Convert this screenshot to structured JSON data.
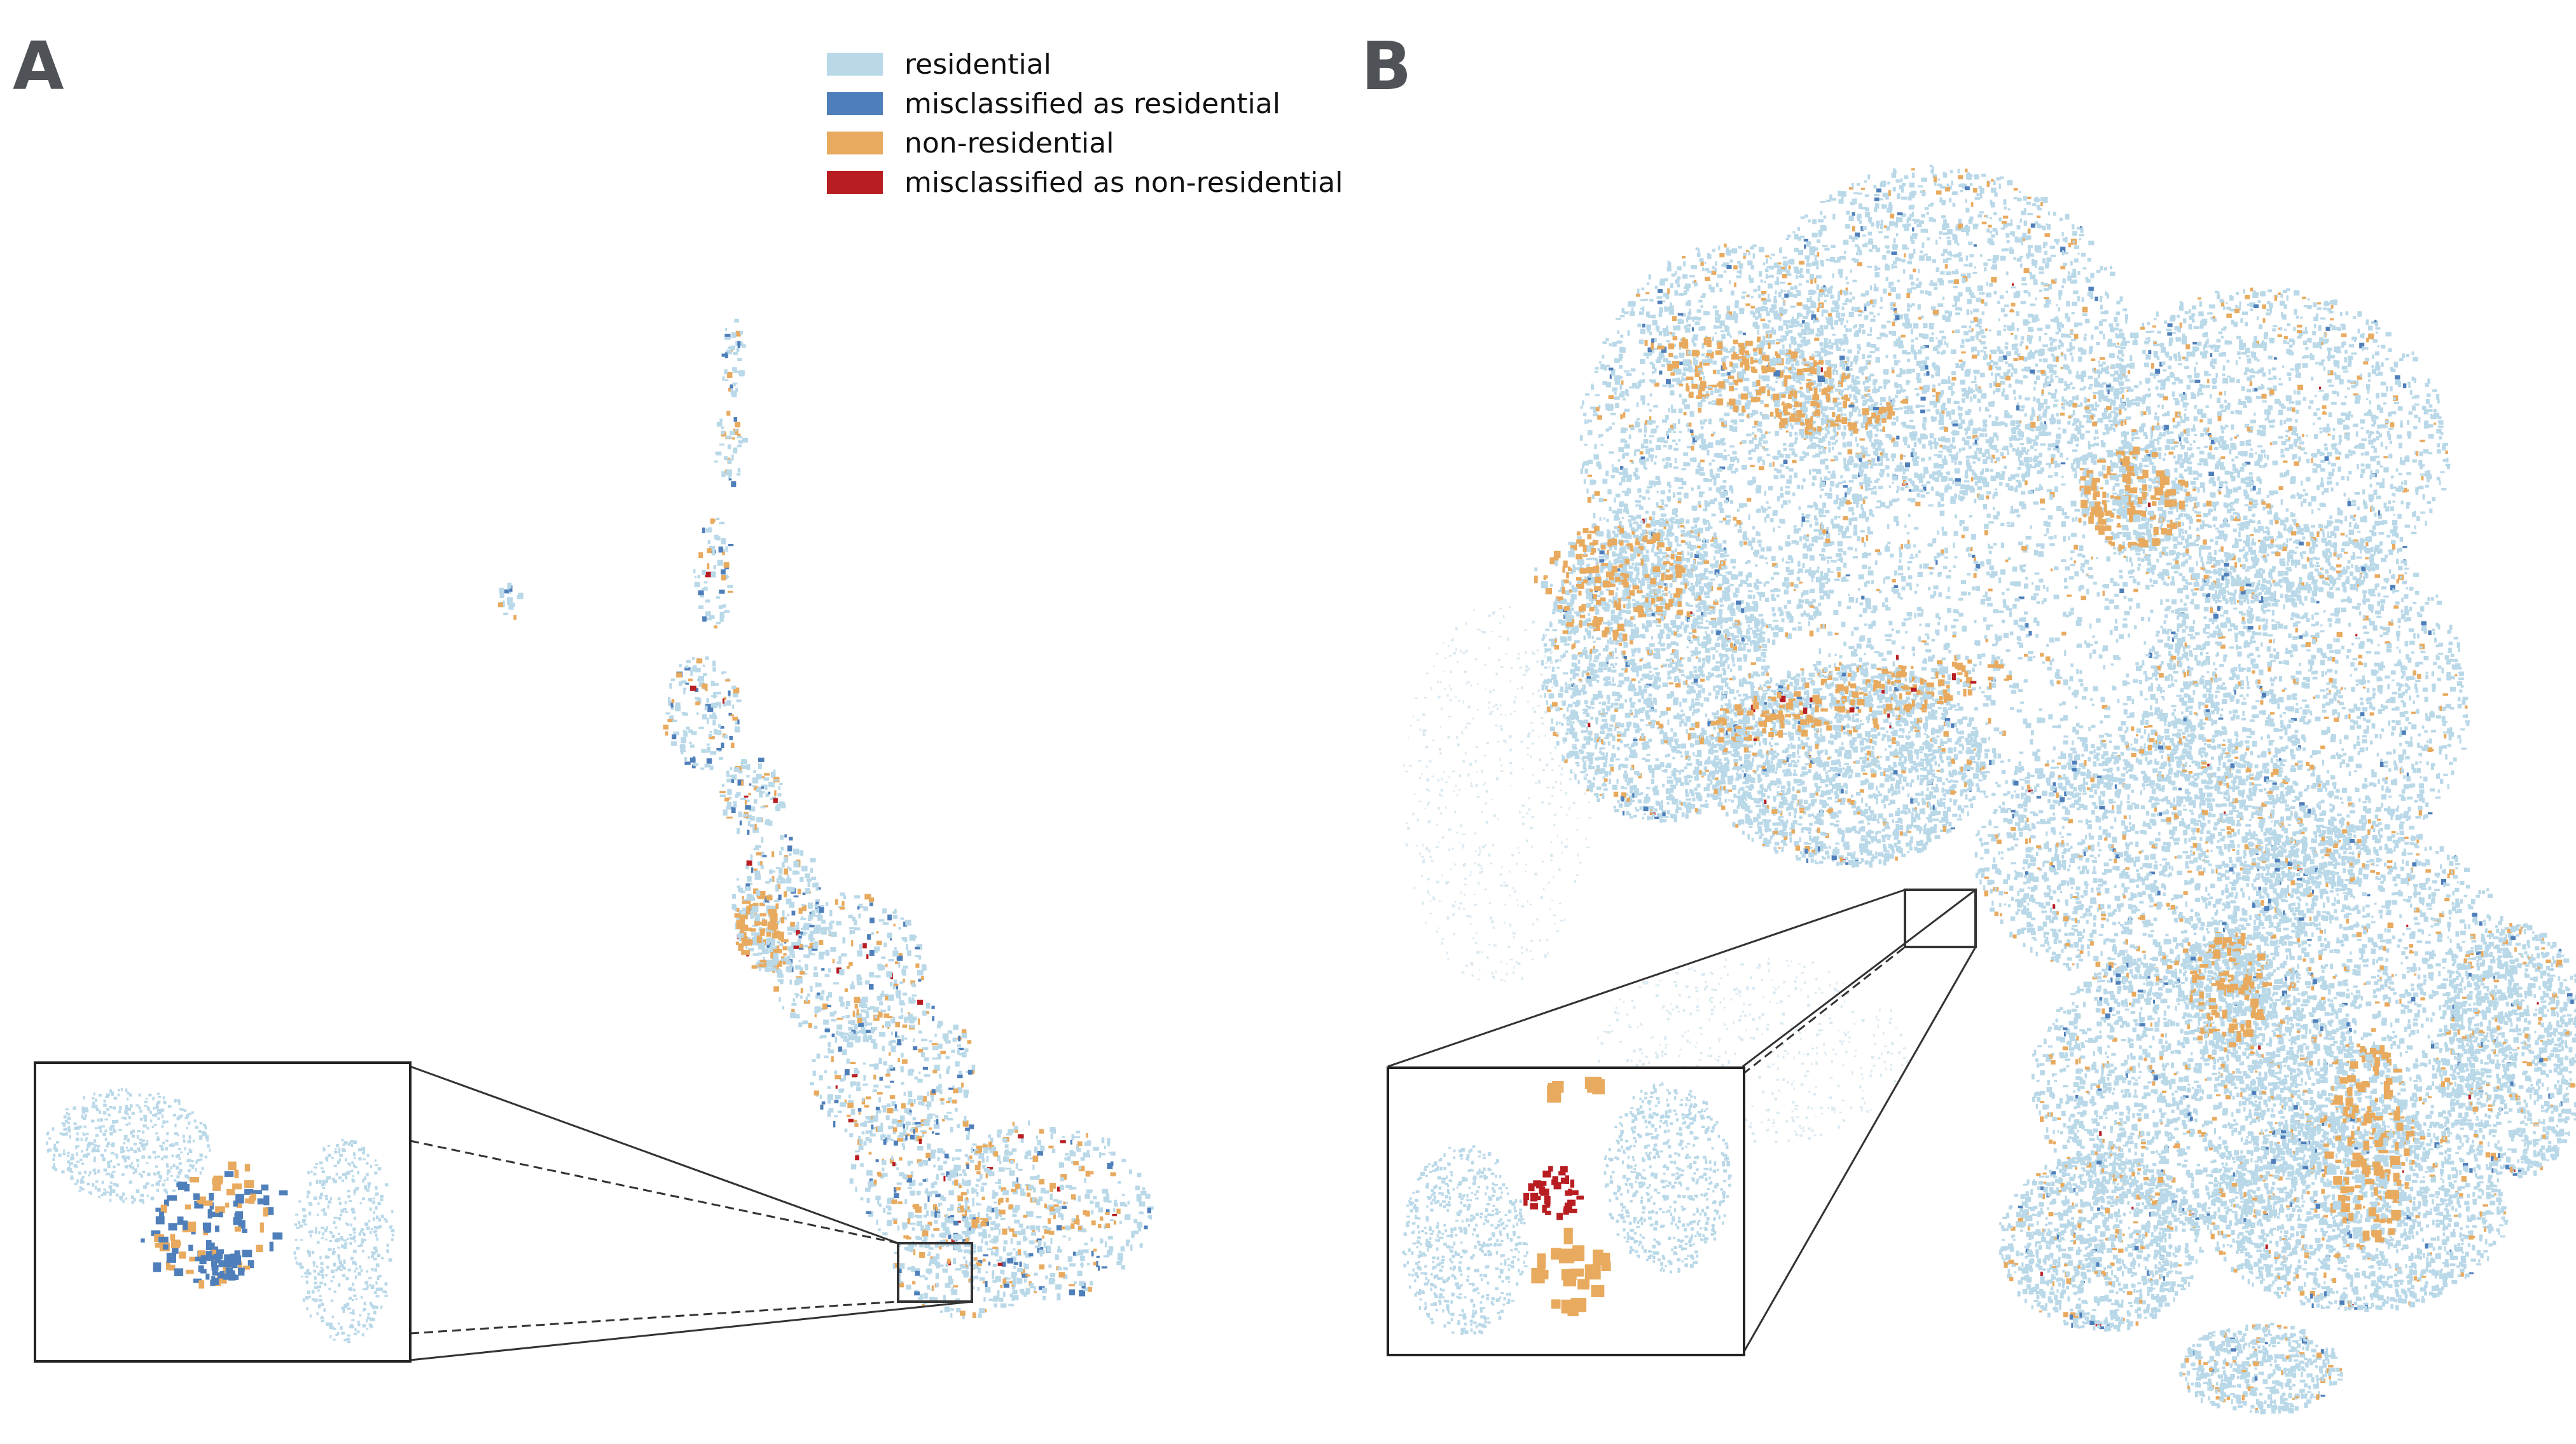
{
  "panels": {
    "a_label": "A",
    "b_label": "B"
  },
  "legend": {
    "items": [
      {
        "label": "residential",
        "color": "#b9d8e8"
      },
      {
        "label": "misclassified as residential",
        "color": "#4f7fba"
      },
      {
        "label": "non-residential",
        "color": "#e8aa5e"
      },
      {
        "label": "misclassified as non-residential",
        "color": "#b81d22"
      }
    ]
  }
}
